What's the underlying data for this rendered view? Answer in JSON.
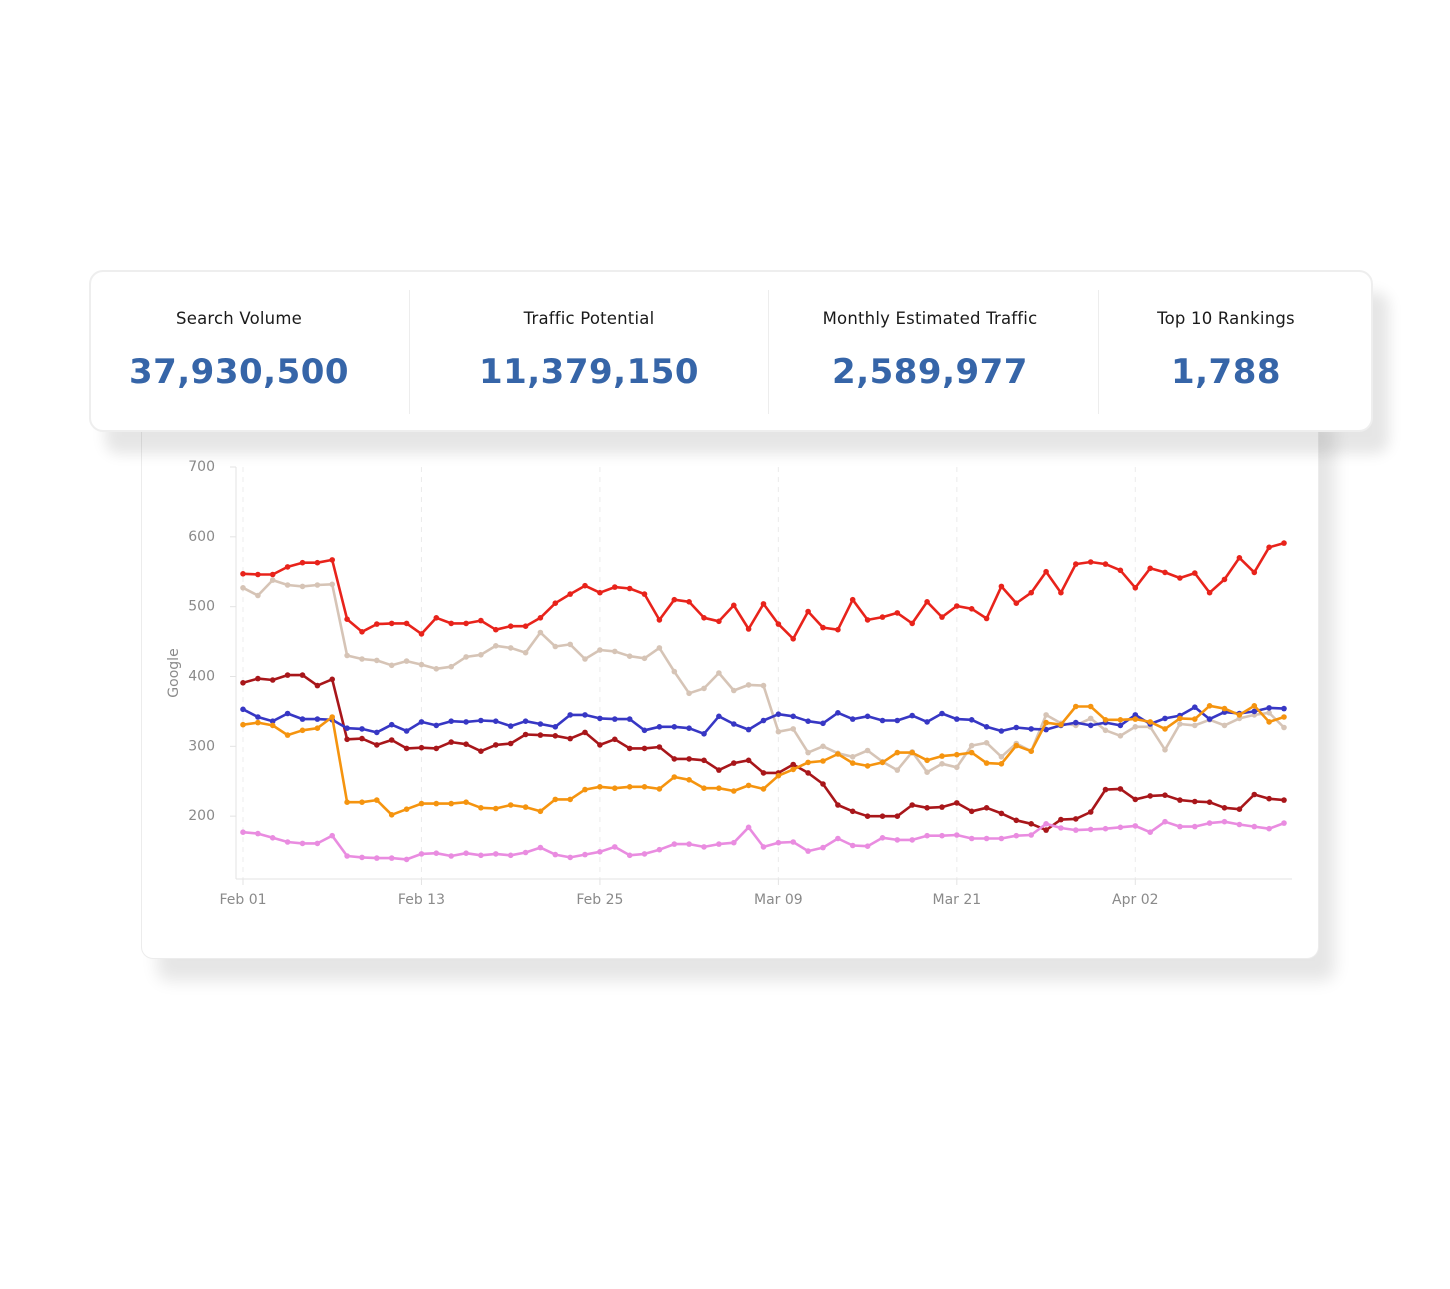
{
  "stats": [
    {
      "label": "Search Volume",
      "value": "37,930,500"
    },
    {
      "label": "Traffic Potential",
      "value": "11,379,150"
    },
    {
      "label": "Monthly Estimated Traffic",
      "value": "2,589,977"
    },
    {
      "label": "Top 10 Rankings",
      "value": "1,788"
    }
  ],
  "colors": {
    "stat_value": "#3665a8",
    "series": [
      "#e8231b",
      "#d6c4b6",
      "#a8161a",
      "#3737c4",
      "#f5940f",
      "#e98ce0"
    ]
  },
  "chart_data": {
    "type": "line",
    "ylabel": "Google",
    "ylim": [
      110,
      700
    ],
    "yticks": [
      200,
      300,
      400,
      500,
      600,
      700
    ],
    "x_start": "2024-02-01",
    "x_end": "2024-04-12",
    "x_count": 71,
    "x_tick_labels": [
      "Feb 01",
      "Feb 13",
      "Feb 25",
      "Mar 09",
      "Mar 21",
      "Apr 02"
    ],
    "grid": "vertical dashed",
    "series": [
      {
        "color": "#e8231b",
        "values": [
          547,
          546,
          546,
          557,
          563,
          563,
          567,
          482,
          464,
          475,
          476,
          476,
          461,
          484,
          476,
          476,
          480,
          467,
          472,
          472,
          484,
          505,
          518,
          530,
          520,
          528,
          526,
          518,
          481,
          510,
          507,
          484,
          479,
          502,
          468,
          504,
          475,
          454,
          493,
          470,
          467,
          510,
          481,
          485,
          491,
          476,
          507,
          485,
          501,
          497,
          483,
          529,
          505,
          520,
          550,
          520,
          561,
          564,
          561,
          552,
          527,
          555,
          549,
          541,
          548,
          520,
          539,
          570,
          549,
          585,
          591
        ]
      },
      {
        "color": "#d6c4b6",
        "values": [
          527,
          516,
          538,
          531,
          529,
          531,
          532,
          430,
          425,
          423,
          416,
          422,
          417,
          411,
          414,
          428,
          431,
          444,
          441,
          434,
          463,
          443,
          446,
          425,
          438,
          436,
          429,
          426,
          441,
          407,
          376,
          383,
          405,
          380,
          388,
          387,
          321,
          325,
          291,
          300,
          290,
          285,
          294,
          278,
          266,
          292,
          263,
          275,
          270,
          301,
          305,
          285,
          304,
          293,
          345,
          333,
          330,
          340,
          323,
          315,
          328,
          328,
          295,
          332,
          330,
          338,
          330,
          340,
          345,
          348,
          327
        ]
      },
      {
        "color": "#a8161a",
        "values": [
          391,
          397,
          395,
          402,
          402,
          387,
          396,
          310,
          311,
          302,
          309,
          297,
          298,
          297,
          306,
          303,
          293,
          302,
          304,
          317,
          316,
          315,
          311,
          320,
          302,
          310,
          297,
          297,
          299,
          282,
          282,
          280,
          266,
          276,
          280,
          262,
          262,
          274,
          262,
          246,
          216,
          207,
          200,
          200,
          200,
          216,
          212,
          213,
          219,
          207,
          212,
          204,
          194,
          189,
          180,
          195,
          196,
          206,
          238,
          239,
          224,
          229,
          230,
          223,
          221,
          220,
          212,
          210,
          231,
          225,
          223
        ]
      },
      {
        "color": "#3737c4",
        "values": [
          353,
          342,
          336,
          347,
          339,
          339,
          338,
          326,
          325,
          320,
          331,
          322,
          335,
          330,
          336,
          335,
          337,
          336,
          329,
          336,
          332,
          328,
          345,
          345,
          340,
          339,
          339,
          323,
          328,
          328,
          326,
          318,
          343,
          332,
          324,
          337,
          346,
          343,
          336,
          333,
          348,
          339,
          343,
          337,
          337,
          344,
          335,
          347,
          339,
          338,
          328,
          322,
          327,
          325,
          324,
          330,
          334,
          330,
          334,
          330,
          345,
          332,
          340,
          344,
          356,
          339,
          349,
          347,
          350,
          355,
          354
        ]
      },
      {
        "color": "#f5940f",
        "values": [
          331,
          334,
          330,
          316,
          323,
          326,
          342,
          220,
          220,
          223,
          202,
          210,
          218,
          218,
          218,
          220,
          212,
          211,
          216,
          213,
          207,
          224,
          224,
          238,
          242,
          240,
          242,
          242,
          239,
          256,
          252,
          240,
          240,
          236,
          244,
          239,
          258,
          267,
          277,
          279,
          289,
          276,
          272,
          277,
          291,
          291,
          280,
          286,
          288,
          291,
          276,
          275,
          301,
          293,
          334,
          331,
          357,
          357,
          338,
          338,
          339,
          335,
          325,
          340,
          339,
          358,
          354,
          345,
          358,
          335,
          342
        ]
      },
      {
        "color": "#e98ce0",
        "values": [
          177,
          175,
          169,
          163,
          161,
          161,
          172,
          143,
          141,
          140,
          140,
          138,
          146,
          147,
          143,
          147,
          144,
          146,
          144,
          148,
          155,
          145,
          141,
          145,
          149,
          156,
          144,
          146,
          152,
          160,
          160,
          156,
          160,
          162,
          184,
          156,
          162,
          163,
          150,
          155,
          168,
          158,
          157,
          169,
          166,
          166,
          172,
          172,
          173,
          168,
          168,
          168,
          172,
          173,
          189,
          183,
          180,
          181,
          182,
          184,
          186,
          177,
          192,
          185,
          185,
          190,
          192,
          188,
          185,
          182,
          190
        ]
      }
    ]
  }
}
